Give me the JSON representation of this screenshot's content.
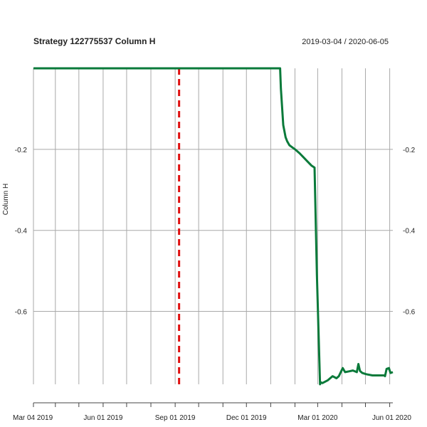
{
  "chart_data": {
    "type": "line",
    "title": "Strategy 122775537 Column H",
    "date_range": "2019-03-04 / 2020-06-05",
    "ylabel": "Column H",
    "xlim": [
      "2019-03-04",
      "2020-06-05"
    ],
    "ylim": [
      -0.78,
      0.0
    ],
    "x_ticks": [
      {
        "date": "2019-03-04",
        "label": "Mar 04 2019"
      },
      {
        "date": "2019-06-01",
        "label": "Jun 01 2019"
      },
      {
        "date": "2019-09-01",
        "label": "Sep 01 2019"
      },
      {
        "date": "2019-12-01",
        "label": "Dec 01 2019"
      },
      {
        "date": "2020-03-01",
        "label": "Mar 01 2020"
      },
      {
        "date": "2020-06-01",
        "label": "Jun 01 2020"
      }
    ],
    "x_gridlines": [
      "2019-03-04",
      "2019-04-01",
      "2019-05-01",
      "2019-06-01",
      "2019-07-01",
      "2019-08-01",
      "2019-09-01",
      "2019-10-01",
      "2019-11-01",
      "2019-12-01",
      "2020-01-01",
      "2020-02-01",
      "2020-03-01",
      "2020-04-01",
      "2020-05-01",
      "2020-06-01"
    ],
    "y_ticks": [
      {
        "value": -0.2,
        "label": "-0.2"
      },
      {
        "value": -0.4,
        "label": "-0.4"
      },
      {
        "value": -0.6,
        "label": "-0.6"
      }
    ],
    "grid": true,
    "colors": {
      "series": "#0a7a3a",
      "event_line": "#e01010",
      "grid": "#a9a9a9"
    },
    "event_line_date": "2019-09-06",
    "series": [
      {
        "x": [
          "2019-03-04",
          "2020-01-13",
          "2020-01-14",
          "2020-01-17",
          "2020-01-20",
          "2020-01-22",
          "2020-01-25",
          "2020-02-01",
          "2020-02-07",
          "2020-02-12",
          "2020-02-17",
          "2020-02-22",
          "2020-02-26",
          "2020-02-29",
          "2020-03-04",
          "2020-03-05",
          "2020-03-07",
          "2020-03-14",
          "2020-03-20",
          "2020-03-25",
          "2020-03-28",
          "2020-04-02",
          "2020-04-05",
          "2020-04-10",
          "2020-04-15",
          "2020-04-20",
          "2020-04-22",
          "2020-04-24",
          "2020-04-27",
          "2020-05-02",
          "2020-05-10",
          "2020-05-20",
          "2020-05-25",
          "2020-05-26",
          "2020-05-28",
          "2020-05-31",
          "2020-06-02",
          "2020-06-05"
        ],
        "y": [
          0.0,
          0.0,
          -0.05,
          -0.14,
          -0.17,
          -0.18,
          -0.19,
          -0.2,
          -0.21,
          -0.22,
          -0.23,
          -0.24,
          -0.245,
          -0.51,
          -0.78,
          -0.775,
          -0.777,
          -0.77,
          -0.76,
          -0.765,
          -0.76,
          -0.74,
          -0.75,
          -0.748,
          -0.746,
          -0.75,
          -0.73,
          -0.747,
          -0.752,
          -0.755,
          -0.758,
          -0.758,
          -0.758,
          -0.76,
          -0.742,
          -0.74,
          -0.752,
          -0.75
        ]
      }
    ]
  }
}
